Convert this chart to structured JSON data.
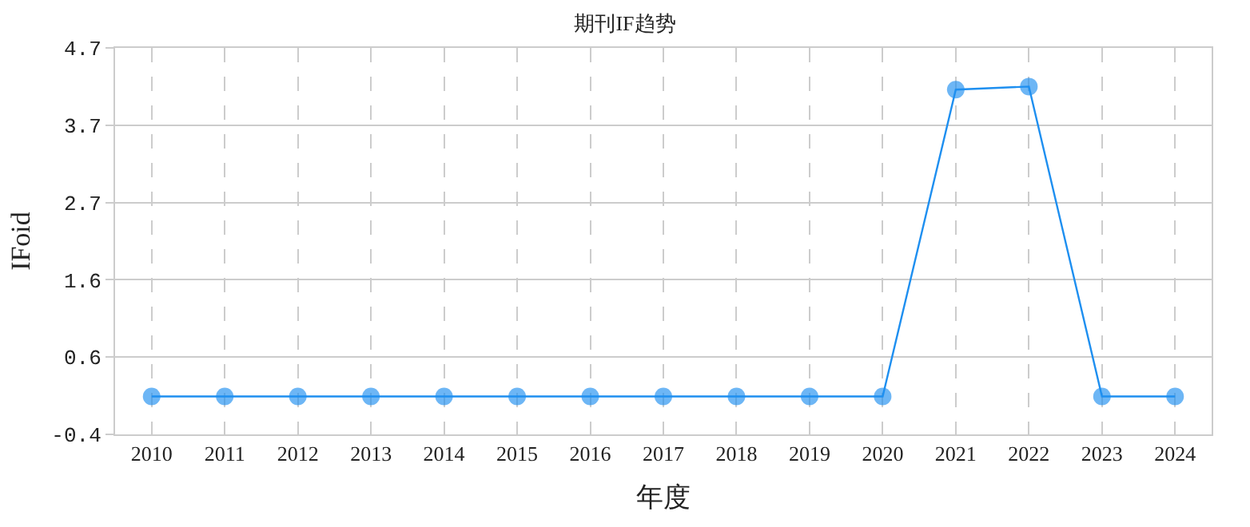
{
  "chart_data": {
    "type": "line",
    "title": "期刊IF趋势",
    "xlabel": "年度",
    "ylabel": "IFoid",
    "categories": [
      "2010",
      "2011",
      "2012",
      "2013",
      "2014",
      "2015",
      "2016",
      "2017",
      "2018",
      "2019",
      "2020",
      "2021",
      "2022",
      "2023",
      "2024"
    ],
    "series": [
      {
        "color": "#1e8ff0",
        "values": [
          0.1,
          0.1,
          0.1,
          0.1,
          0.1,
          0.1,
          0.1,
          0.1,
          0.1,
          0.1,
          0.1,
          4.15,
          4.19,
          0.1,
          0.1
        ]
      }
    ],
    "ylim": [
      -0.4,
      4.7
    ],
    "yticks": [
      -0.4,
      {
        "value": 0.62,
        "label": "0.6"
      },
      {
        "value": 1.64,
        "label": "1.6"
      },
      {
        "value": 2.66,
        "label": "2.7"
      },
      {
        "value": 3.68,
        "label": "3.7"
      },
      4.7
    ],
    "grid": true,
    "marker": "circle",
    "line_style": "solid"
  }
}
